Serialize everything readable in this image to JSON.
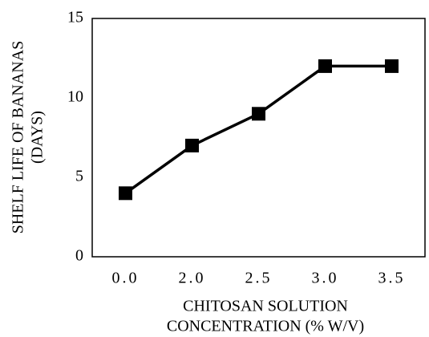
{
  "chart_data": {
    "type": "line",
    "categories": [
      "0.0",
      "2.0",
      "2.5",
      "3.0",
      "3.5"
    ],
    "series": [
      {
        "values": [
          4,
          7,
          9,
          12,
          12
        ]
      }
    ],
    "title": "",
    "xlabel_lines": [
      "CHITOSAN SOLUTION",
      "CONCENTRATION (% W/V)"
    ],
    "ylabel_lines": [
      "SHELF LIFE OF BANANAS",
      "(DAYS)"
    ],
    "ylim": [
      0,
      15
    ],
    "yticks": [
      "0",
      "5",
      "10",
      "15"
    ],
    "grid": false,
    "legend": "none",
    "marker": "square",
    "line_color": "#000000",
    "marker_color": "#000000"
  }
}
